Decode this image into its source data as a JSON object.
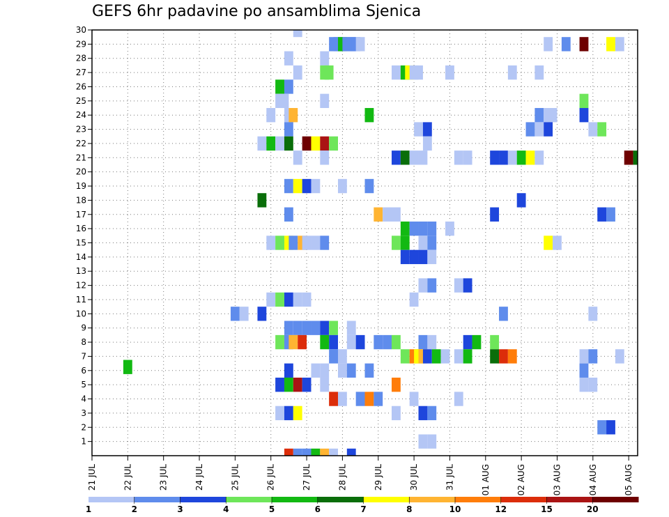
{
  "chart_data": {
    "type": "heatmap",
    "title": "GEFS 6hr padavine po ansamblima Sjenica",
    "xlabel": "",
    "ylabel": "",
    "x_ticks": [
      "21 JUL",
      "22 JUL",
      "23 JUL",
      "24 JUL",
      "25 JUL",
      "26 JUL",
      "27 JUL",
      "28 JUL",
      "29 JUL",
      "30 JUL",
      "31 JUL",
      "01 AUG",
      "02 AUG",
      "03 AUG",
      "04 AUG",
      "05 AUG"
    ],
    "y_ticks": [
      "1",
      "2",
      "3",
      "4",
      "5",
      "6",
      "7",
      "8",
      "9",
      "10",
      "11",
      "12",
      "13",
      "14",
      "15",
      "16",
      "17",
      "18",
      "19",
      "20",
      "21",
      "22",
      "23",
      "24",
      "25",
      "26",
      "27",
      "28",
      "29",
      "30"
    ],
    "x_step": "6hr",
    "x_range_days": [
      0,
      15.25
    ],
    "members": [
      0,
      30
    ],
    "grid": true,
    "legend": {
      "position": "bottom",
      "levels": [
        1,
        2,
        3,
        4,
        5,
        6,
        7,
        8,
        10,
        12,
        15,
        20
      ],
      "colors": [
        "#b4c6f5",
        "#5f8cec",
        "#1e46dc",
        "#6ee65a",
        "#12b912",
        "#0a6e0a",
        "#ffff00",
        "#ffb432",
        "#ff7d0a",
        "#dc2d0a",
        "#aa1414",
        "#6e0000"
      ]
    },
    "cells": [
      [
        30,
        5.75,
        1
      ],
      [
        29,
        6.75,
        2
      ],
      [
        29,
        6.875,
        2
      ],
      [
        29,
        7.0,
        5
      ],
      [
        29,
        7.125,
        2
      ],
      [
        29,
        7.25,
        2
      ],
      [
        29,
        7.375,
        2
      ],
      [
        29,
        7.5,
        1
      ],
      [
        29,
        12.75,
        1
      ],
      [
        29,
        13.25,
        2
      ],
      [
        29,
        13.75,
        20
      ],
      [
        29,
        14.5,
        7
      ],
      [
        29,
        14.75,
        1
      ],
      [
        28,
        5.5,
        1
      ],
      [
        28,
        6.5,
        1
      ],
      [
        27,
        5.75,
        1
      ],
      [
        27,
        6.5,
        4
      ],
      [
        27,
        6.625,
        4
      ],
      [
        27,
        8.5,
        1
      ],
      [
        27,
        8.75,
        5
      ],
      [
        27,
        8.875,
        7
      ],
      [
        27,
        9.0,
        1
      ],
      [
        27,
        9.125,
        1
      ],
      [
        27,
        10.0,
        1
      ],
      [
        27,
        11.75,
        1
      ],
      [
        27,
        12.5,
        1
      ],
      [
        26,
        5.25,
        5
      ],
      [
        26,
        5.5,
        2
      ],
      [
        25,
        5.25,
        1
      ],
      [
        25,
        5.375,
        1
      ],
      [
        25,
        6.5,
        1
      ],
      [
        25,
        13.75,
        4
      ],
      [
        24,
        5.0,
        1
      ],
      [
        24,
        5.5,
        1
      ],
      [
        24,
        5.625,
        8
      ],
      [
        24,
        7.75,
        5
      ],
      [
        24,
        12.5,
        2
      ],
      [
        24,
        12.75,
        1
      ],
      [
        24,
        12.875,
        1
      ],
      [
        24,
        13.75,
        3
      ],
      [
        23,
        5.5,
        2
      ],
      [
        23,
        9.125,
        1
      ],
      [
        23,
        9.375,
        3
      ],
      [
        23,
        12.25,
        2
      ],
      [
        23,
        12.5,
        1
      ],
      [
        23,
        12.75,
        3
      ],
      [
        23,
        14.0,
        1
      ],
      [
        23,
        14.25,
        4
      ],
      [
        22,
        4.75,
        1
      ],
      [
        22,
        5.0,
        5
      ],
      [
        22,
        5.25,
        1
      ],
      [
        22,
        5.5,
        6
      ],
      [
        22,
        6.0,
        20
      ],
      [
        22,
        6.25,
        7
      ],
      [
        22,
        6.5,
        15
      ],
      [
        22,
        6.75,
        4
      ],
      [
        22,
        9.375,
        1
      ],
      [
        21,
        5.75,
        1
      ],
      [
        21,
        6.5,
        1
      ],
      [
        21,
        8.5,
        3
      ],
      [
        21,
        8.75,
        6
      ],
      [
        21,
        9.0,
        1
      ],
      [
        21,
        9.25,
        1
      ],
      [
        21,
        10.25,
        1
      ],
      [
        21,
        10.5,
        1
      ],
      [
        21,
        11.25,
        3
      ],
      [
        21,
        11.5,
        3
      ],
      [
        21,
        11.75,
        1
      ],
      [
        21,
        12.0,
        5
      ],
      [
        21,
        12.25,
        7
      ],
      [
        21,
        12.5,
        1
      ],
      [
        21,
        15.0,
        20
      ],
      [
        21,
        15.25,
        6
      ],
      [
        19,
        5.5,
        2
      ],
      [
        19,
        5.75,
        7
      ],
      [
        19,
        6.0,
        3
      ],
      [
        19,
        6.25,
        1
      ],
      [
        19,
        7.0,
        1
      ],
      [
        19,
        7.75,
        2
      ],
      [
        18,
        4.75,
        6
      ],
      [
        18,
        12.0,
        3
      ],
      [
        17,
        5.5,
        2
      ],
      [
        17,
        8.0,
        8
      ],
      [
        17,
        8.25,
        1
      ],
      [
        17,
        8.5,
        1
      ],
      [
        17,
        11.25,
        3
      ],
      [
        17,
        14.25,
        3
      ],
      [
        17,
        14.5,
        2
      ],
      [
        16,
        8.75,
        5
      ],
      [
        16,
        9.0,
        2
      ],
      [
        16,
        9.25,
        2
      ],
      [
        16,
        9.5,
        2
      ],
      [
        16,
        10.0,
        1
      ],
      [
        15,
        5.0,
        1
      ],
      [
        15,
        5.25,
        4
      ],
      [
        15,
        5.5,
        7
      ],
      [
        15,
        5.625,
        2
      ],
      [
        15,
        5.875,
        8
      ],
      [
        15,
        6.0,
        1
      ],
      [
        15,
        6.25,
        1
      ],
      [
        15,
        6.5,
        2
      ],
      [
        15,
        8.5,
        4
      ],
      [
        15,
        8.75,
        5
      ],
      [
        15,
        9.25,
        1
      ],
      [
        15,
        9.5,
        2
      ],
      [
        15,
        12.75,
        7
      ],
      [
        15,
        13.0,
        1
      ],
      [
        14,
        8.75,
        3
      ],
      [
        14,
        9.0,
        3
      ],
      [
        14,
        9.25,
        3
      ],
      [
        14,
        9.5,
        1
      ],
      [
        12,
        9.25,
        1
      ],
      [
        12,
        9.5,
        2
      ],
      [
        12,
        10.25,
        1
      ],
      [
        12,
        10.5,
        3
      ],
      [
        11,
        5.0,
        1
      ],
      [
        11,
        5.25,
        4
      ],
      [
        11,
        5.5,
        3
      ],
      [
        11,
        5.75,
        1
      ],
      [
        11,
        6.0,
        1
      ],
      [
        11,
        9.0,
        1
      ],
      [
        10,
        4.0,
        2
      ],
      [
        10,
        4.25,
        1
      ],
      [
        10,
        4.75,
        3
      ],
      [
        10,
        11.5,
        2
      ],
      [
        10,
        14.0,
        1
      ],
      [
        9,
        5.5,
        2
      ],
      [
        9,
        5.75,
        2
      ],
      [
        9,
        6.0,
        2
      ],
      [
        9,
        6.25,
        2
      ],
      [
        9,
        6.5,
        3
      ],
      [
        9,
        6.75,
        4
      ],
      [
        9,
        7.25,
        1
      ],
      [
        8,
        5.25,
        4
      ],
      [
        8,
        5.5,
        2
      ],
      [
        8,
        5.625,
        8
      ],
      [
        8,
        5.875,
        12
      ],
      [
        8,
        6.5,
        5
      ],
      [
        8,
        6.75,
        3
      ],
      [
        8,
        7.25,
        1
      ],
      [
        8,
        7.5,
        3
      ],
      [
        8,
        8.0,
        2
      ],
      [
        8,
        8.25,
        2
      ],
      [
        8,
        8.5,
        4
      ],
      [
        8,
        9.25,
        2
      ],
      [
        8,
        9.5,
        1
      ],
      [
        8,
        10.5,
        3
      ],
      [
        8,
        10.75,
        5
      ],
      [
        8,
        11.25,
        4
      ],
      [
        7,
        6.75,
        2
      ],
      [
        7,
        7.0,
        1
      ],
      [
        7,
        8.75,
        4
      ],
      [
        7,
        9.0,
        10
      ],
      [
        7,
        9.125,
        7
      ],
      [
        7,
        9.25,
        8
      ],
      [
        7,
        9.375,
        3
      ],
      [
        7,
        9.625,
        5
      ],
      [
        7,
        9.875,
        1
      ],
      [
        7,
        10.25,
        1
      ],
      [
        7,
        10.5,
        5
      ],
      [
        7,
        11.25,
        6
      ],
      [
        7,
        11.5,
        12
      ],
      [
        7,
        11.75,
        10
      ],
      [
        7,
        13.75,
        1
      ],
      [
        7,
        14.0,
        2
      ],
      [
        7,
        14.75,
        1
      ],
      [
        6,
        5.5,
        3
      ],
      [
        6,
        6.25,
        1
      ],
      [
        6,
        6.5,
        1
      ],
      [
        6,
        7.0,
        1
      ],
      [
        6,
        7.25,
        2
      ],
      [
        6,
        7.75,
        2
      ],
      [
        6,
        13.75,
        2
      ],
      [
        5,
        5.25,
        3
      ],
      [
        5,
        5.5,
        5
      ],
      [
        5,
        5.75,
        15
      ],
      [
        5,
        6.0,
        3
      ],
      [
        6.25,
        1,
        5
      ],
      [
        5,
        6.5,
        1
      ],
      [
        5,
        8.5,
        10
      ],
      [
        5,
        13.75,
        1
      ],
      [
        5,
        14.0,
        1
      ],
      [
        4,
        6.75,
        12
      ],
      [
        4,
        7.0,
        1
      ],
      [
        4,
        7.5,
        2
      ],
      [
        4,
        7.75,
        10
      ],
      [
        4,
        8.0,
        2
      ],
      [
        4,
        9.0,
        1
      ],
      [
        4,
        10.25,
        1
      ],
      [
        3,
        5.25,
        1
      ],
      [
        3,
        5.5,
        3
      ],
      [
        3,
        5.75,
        7
      ],
      [
        3,
        8.5,
        1
      ],
      [
        3,
        9.25,
        3
      ],
      [
        3,
        9.5,
        2
      ],
      [
        2,
        14.25,
        2
      ],
      [
        2,
        14.5,
        3
      ],
      [
        1,
        9.25,
        1
      ],
      [
        1,
        9.5,
        1
      ],
      [
        0,
        5.5,
        12
      ],
      [
        0,
        5.75,
        2
      ],
      [
        0,
        6.0,
        2
      ],
      [
        0,
        6.25,
        5
      ],
      [
        0,
        6.5,
        8
      ],
      [
        0,
        6.75,
        1
      ],
      [
        0,
        7.25,
        3
      ]
    ]
  }
}
